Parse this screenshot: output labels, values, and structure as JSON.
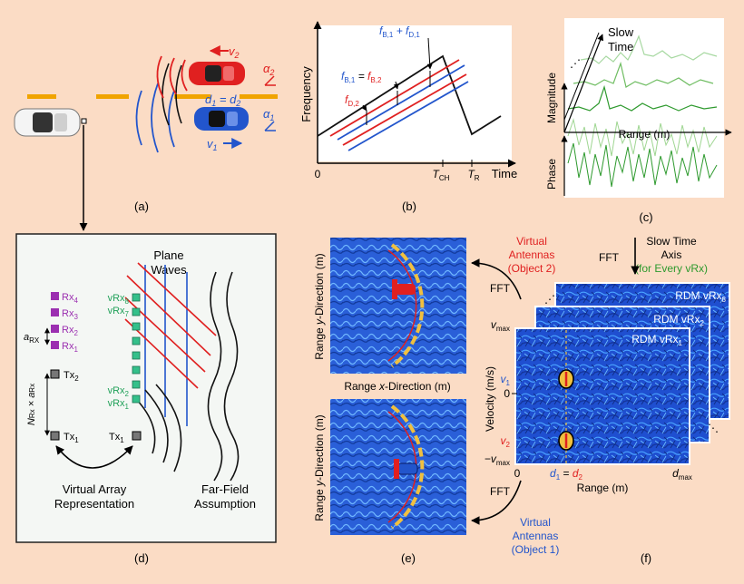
{
  "colors": {
    "background": "#fbdcc5",
    "red": "#e02020",
    "blue": "#2255cc",
    "green": "#2e9a2e",
    "purple": "#9b2fb0",
    "teal_green": "#22a15a",
    "road_yellow": "#f0a400",
    "heatmap_blue": "#1f4fd0"
  },
  "panel_labels": {
    "a": "(a)",
    "b": "(b)",
    "c": "(c)",
    "d": "(d)",
    "e": "(e)",
    "f": "(f)"
  },
  "panel_a": {
    "v2": "v",
    "v2_sub": "2",
    "v1": "v",
    "v1_sub": "1",
    "alpha2": "α",
    "alpha2_sub": "2",
    "alpha1": "α",
    "alpha1_sub": "1",
    "d_eq": "d",
    "d1_sub": "1",
    "eq": " = d",
    "d2_sub": "2"
  },
  "panel_b": {
    "y_axis": "Frequency",
    "x_axis": "Time",
    "origin": "0",
    "t_ch": "T",
    "t_ch_sub": "CH",
    "t_r": "T",
    "t_r_sub": "R",
    "fb1_fd1": "f",
    "fb1_fd1_parts": [
      "B,1",
      " + f",
      "D,1"
    ],
    "fb1_fb2_parts": [
      "f",
      "B,1",
      " = ",
      "f",
      "B,2"
    ],
    "fd2_parts": [
      "f",
      "D,2"
    ]
  },
  "panel_c": {
    "slow_time": "Slow",
    "slow_time2": "Time",
    "magnitude": "Magnitude",
    "range": "Range (m)",
    "phase": "Phase",
    "dots": "⋰"
  },
  "panel_d": {
    "plane_waves_1": "Plane",
    "plane_waves_2": "Waves",
    "rx_labels": [
      "Rx",
      "Rx",
      "Rx",
      "Rx"
    ],
    "rx_subs": [
      "4",
      "3",
      "2",
      "1"
    ],
    "a_rx": "a",
    "a_rx_sub": "RX",
    "tx2": "Tx",
    "tx2_sub": "2",
    "tx1": "Tx",
    "tx1_sub": "1",
    "tx1_right": "Tx",
    "tx1_right_sub": "1",
    "n_rx": "N",
    "n_rx_sub": "Rx",
    "times_a": " × a",
    "times_a_sub": "Rx",
    "vrx_top": [
      "vRx",
      "vRx"
    ],
    "vrx_top_subs": [
      "8",
      "7"
    ],
    "vrx_bottom": [
      "vRx",
      "vRx"
    ],
    "vrx_bottom_subs": [
      "2",
      "1"
    ],
    "virtual_array_1": "Virtual Array",
    "virtual_array_2": "Representation",
    "far_field_1": "Far-Field",
    "far_field_2": "Assumption"
  },
  "panel_e": {
    "y_label_top": "Range y-Direction (m)",
    "y_label_bottom": "Range y-Direction (m)",
    "x_label": "Range x-Direction (m)",
    "y_label_parts": [
      "Range ",
      "y",
      "-Direction (m)"
    ],
    "x_label_parts": [
      "Range ",
      "x",
      "-Direction (m)"
    ]
  },
  "panel_f": {
    "fft_top": "FFT",
    "fft_right": "FFT",
    "fft_bottom": "FFT",
    "virtual_obj2_1": "Virtual",
    "virtual_obj2_2": "Antennas",
    "virtual_obj2_3": "(Object 2)",
    "virtual_obj1_1": "Virtual",
    "virtual_obj1_2": "Antennas",
    "virtual_obj1_3": "(Object 1)",
    "slow_time_axis_1": "Slow Time",
    "slow_time_axis_2": "Axis",
    "slow_time_axis_3": "(for Every vRx)",
    "rdm8": "RDM vRx",
    "rdm8_sub": "8",
    "rdm2": "RDM vRx",
    "rdm2_sub": "2",
    "rdm1": "RDM vRx",
    "rdm1_sub": "1",
    "vmax": "v",
    "vmax_sub": "max",
    "neg_vmax": "−v",
    "neg_vmax_sub": "max",
    "v1": "v",
    "v1_sub": "1",
    "v2": "v",
    "v2_sub": "2",
    "zero_v": "0",
    "zero_r": "0",
    "velocity": "Velocity (m/s)",
    "range": "Range (m)",
    "d1": "d",
    "d1_sub": "1",
    "eq": " = ",
    "d2": "d",
    "d2_sub": "2",
    "dmax": "d",
    "dmax_sub": "max",
    "dots": "⋰",
    "dots2": "⋱"
  }
}
